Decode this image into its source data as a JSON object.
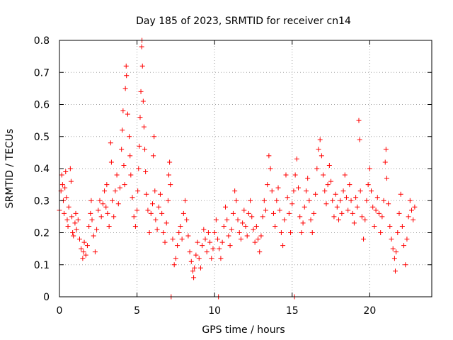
{
  "chart_data": {
    "type": "scatter",
    "title": "Day 185 of 2023, SRMTID for receiver cn14",
    "xlabel": "GPS time / hours",
    "ylabel": "SRMTID / TECUs",
    "xlim": [
      0,
      24
    ],
    "ylim": [
      0,
      0.8
    ],
    "xticks": [
      0,
      5,
      10,
      15,
      20
    ],
    "xtick_labels": [
      "0",
      "5",
      "10",
      "15",
      "20"
    ],
    "yticks": [
      0,
      0.1,
      0.2,
      0.3,
      0.4,
      0.5,
      0.6,
      0.7,
      0.8
    ],
    "ytick_labels": [
      "0",
      "0.1",
      "0.2",
      "0.3",
      "0.4",
      "0.5",
      "0.6",
      "0.7",
      "0.8"
    ],
    "grid": true,
    "marker": "+",
    "color": "#ff0000",
    "series": [
      {
        "name": "cn14",
        "points": [
          [
            0.0,
            0.27
          ],
          [
            0.1,
            0.33
          ],
          [
            0.15,
            0.38
          ],
          [
            0.2,
            0.35
          ],
          [
            0.25,
            0.3
          ],
          [
            0.3,
            0.26
          ],
          [
            0.35,
            0.34
          ],
          [
            0.4,
            0.39
          ],
          [
            0.45,
            0.31
          ],
          [
            0.5,
            0.24
          ],
          [
            0.55,
            0.22
          ],
          [
            0.6,
            0.28
          ],
          [
            0.7,
            0.4
          ],
          [
            0.75,
            0.36
          ],
          [
            0.8,
            0.25
          ],
          [
            0.85,
            0.2
          ],
          [
            0.9,
            0.19
          ],
          [
            1.0,
            0.23
          ],
          [
            1.05,
            0.26
          ],
          [
            1.1,
            0.21
          ],
          [
            1.2,
            0.24
          ],
          [
            1.3,
            0.18
          ],
          [
            1.4,
            0.15
          ],
          [
            1.5,
            0.12
          ],
          [
            1.55,
            0.14
          ],
          [
            1.6,
            0.17
          ],
          [
            1.7,
            0.13
          ],
          [
            1.8,
            0.16
          ],
          [
            1.9,
            0.22
          ],
          [
            2.0,
            0.26
          ],
          [
            2.05,
            0.3
          ],
          [
            2.1,
            0.24
          ],
          [
            2.2,
            0.19
          ],
          [
            2.3,
            0.14
          ],
          [
            2.4,
            0.21
          ],
          [
            2.5,
            0.27
          ],
          [
            2.6,
            0.3
          ],
          [
            2.7,
            0.25
          ],
          [
            2.8,
            0.29
          ],
          [
            2.9,
            0.33
          ],
          [
            3.0,
            0.28
          ],
          [
            3.05,
            0.35
          ],
          [
            3.1,
            0.26
          ],
          [
            3.2,
            0.22
          ],
          [
            3.3,
            0.48
          ],
          [
            3.35,
            0.42
          ],
          [
            3.4,
            0.3
          ],
          [
            3.5,
            0.25
          ],
          [
            3.6,
            0.33
          ],
          [
            3.7,
            0.38
          ],
          [
            3.8,
            0.29
          ],
          [
            3.9,
            0.34
          ],
          [
            4.0,
            0.46
          ],
          [
            4.05,
            0.52
          ],
          [
            4.1,
            0.58
          ],
          [
            4.15,
            0.41
          ],
          [
            4.2,
            0.35
          ],
          [
            4.25,
            0.65
          ],
          [
            4.3,
            0.72
          ],
          [
            4.32,
            0.69
          ],
          [
            4.4,
            0.57
          ],
          [
            4.5,
            0.5
          ],
          [
            4.55,
            0.44
          ],
          [
            4.6,
            0.38
          ],
          [
            4.7,
            0.31
          ],
          [
            4.8,
            0.25
          ],
          [
            4.9,
            0.22
          ],
          [
            5.0,
            0.27
          ],
          [
            5.05,
            0.33
          ],
          [
            5.1,
            0.4
          ],
          [
            5.15,
            0.47
          ],
          [
            5.2,
            0.56
          ],
          [
            5.25,
            0.64
          ],
          [
            5.3,
            0.78
          ],
          [
            5.32,
            0.8
          ],
          [
            5.35,
            0.72
          ],
          [
            5.4,
            0.61
          ],
          [
            5.45,
            0.53
          ],
          [
            5.5,
            0.46
          ],
          [
            5.55,
            0.39
          ],
          [
            5.6,
            0.32
          ],
          [
            5.7,
            0.27
          ],
          [
            5.8,
            0.2
          ],
          [
            5.9,
            0.26
          ],
          [
            6.0,
            0.29
          ],
          [
            6.05,
            0.44
          ],
          [
            6.1,
            0.5
          ],
          [
            6.15,
            0.33
          ],
          [
            6.2,
            0.24
          ],
          [
            6.3,
            0.21
          ],
          [
            6.4,
            0.28
          ],
          [
            6.5,
            0.32
          ],
          [
            6.6,
            0.26
          ],
          [
            6.7,
            0.2
          ],
          [
            6.8,
            0.17
          ],
          [
            6.9,
            0.23
          ],
          [
            7.0,
            0.3
          ],
          [
            7.05,
            0.38
          ],
          [
            7.1,
            0.42
          ],
          [
            7.15,
            0.35
          ],
          [
            7.2,
            0.0
          ],
          [
            7.3,
            0.18
          ],
          [
            7.4,
            0.1
          ],
          [
            7.5,
            0.12
          ],
          [
            7.6,
            0.16
          ],
          [
            7.7,
            0.2
          ],
          [
            7.8,
            0.22
          ],
          [
            7.9,
            0.18
          ],
          [
            8.0,
            0.26
          ],
          [
            8.1,
            0.3
          ],
          [
            8.2,
            0.24
          ],
          [
            8.3,
            0.19
          ],
          [
            8.4,
            0.14
          ],
          [
            8.5,
            0.11
          ],
          [
            8.6,
            0.08
          ],
          [
            8.65,
            0.06
          ],
          [
            8.7,
            0.09
          ],
          [
            8.8,
            0.13
          ],
          [
            8.9,
            0.17
          ],
          [
            9.0,
            0.12
          ],
          [
            9.1,
            0.09
          ],
          [
            9.2,
            0.16
          ],
          [
            9.3,
            0.21
          ],
          [
            9.4,
            0.18
          ],
          [
            9.5,
            0.14
          ],
          [
            9.6,
            0.2
          ],
          [
            9.7,
            0.17
          ],
          [
            9.8,
            0.12
          ],
          [
            9.9,
            0.15
          ],
          [
            10.0,
            0.2
          ],
          [
            10.1,
            0.24
          ],
          [
            10.2,
            0.18
          ],
          [
            10.25,
            0.0
          ],
          [
            10.3,
            0.15
          ],
          [
            10.4,
            0.12
          ],
          [
            10.5,
            0.17
          ],
          [
            10.6,
            0.22
          ],
          [
            10.7,
            0.28
          ],
          [
            10.8,
            0.24
          ],
          [
            10.9,
            0.19
          ],
          [
            11.0,
            0.16
          ],
          [
            11.1,
            0.21
          ],
          [
            11.2,
            0.26
          ],
          [
            11.3,
            0.33
          ],
          [
            11.4,
            0.3
          ],
          [
            11.5,
            0.24
          ],
          [
            11.6,
            0.2
          ],
          [
            11.7,
            0.18
          ],
          [
            11.8,
            0.23
          ],
          [
            11.9,
            0.27
          ],
          [
            12.0,
            0.22
          ],
          [
            12.1,
            0.19
          ],
          [
            12.2,
            0.26
          ],
          [
            12.3,
            0.3
          ],
          [
            12.4,
            0.25
          ],
          [
            12.5,
            0.21
          ],
          [
            12.6,
            0.17
          ],
          [
            12.7,
            0.22
          ],
          [
            12.8,
            0.18
          ],
          [
            12.9,
            0.14
          ],
          [
            13.0,
            0.19
          ],
          [
            13.1,
            0.25
          ],
          [
            13.2,
            0.3
          ],
          [
            13.3,
            0.27
          ],
          [
            13.4,
            0.35
          ],
          [
            13.5,
            0.44
          ],
          [
            13.6,
            0.4
          ],
          [
            13.7,
            0.33
          ],
          [
            13.8,
            0.26
          ],
          [
            13.9,
            0.22
          ],
          [
            14.0,
            0.3
          ],
          [
            14.1,
            0.34
          ],
          [
            14.2,
            0.27
          ],
          [
            14.3,
            0.2
          ],
          [
            14.4,
            0.16
          ],
          [
            14.5,
            0.24
          ],
          [
            14.6,
            0.38
          ],
          [
            14.7,
            0.31
          ],
          [
            14.8,
            0.26
          ],
          [
            14.9,
            0.2
          ],
          [
            15.0,
            0.29
          ],
          [
            15.1,
            0.33
          ],
          [
            15.15,
            0.0
          ],
          [
            15.2,
            0.38
          ],
          [
            15.3,
            0.43
          ],
          [
            15.4,
            0.34
          ],
          [
            15.5,
            0.25
          ],
          [
            15.6,
            0.2
          ],
          [
            15.7,
            0.23
          ],
          [
            15.8,
            0.28
          ],
          [
            15.9,
            0.33
          ],
          [
            16.0,
            0.37
          ],
          [
            16.1,
            0.3
          ],
          [
            16.2,
            0.24
          ],
          [
            16.3,
            0.2
          ],
          [
            16.4,
            0.26
          ],
          [
            16.5,
            0.32
          ],
          [
            16.6,
            0.4
          ],
          [
            16.7,
            0.46
          ],
          [
            16.8,
            0.49
          ],
          [
            16.9,
            0.44
          ],
          [
            17.0,
            0.38
          ],
          [
            17.1,
            0.33
          ],
          [
            17.2,
            0.29
          ],
          [
            17.3,
            0.35
          ],
          [
            17.4,
            0.41
          ],
          [
            17.5,
            0.36
          ],
          [
            17.6,
            0.3
          ],
          [
            17.7,
            0.25
          ],
          [
            17.8,
            0.32
          ],
          [
            17.9,
            0.28
          ],
          [
            18.0,
            0.24
          ],
          [
            18.1,
            0.3
          ],
          [
            18.2,
            0.26
          ],
          [
            18.3,
            0.33
          ],
          [
            18.4,
            0.38
          ],
          [
            18.5,
            0.31
          ],
          [
            18.6,
            0.27
          ],
          [
            18.7,
            0.35
          ],
          [
            18.8,
            0.3
          ],
          [
            18.9,
            0.26
          ],
          [
            19.0,
            0.23
          ],
          [
            19.1,
            0.31
          ],
          [
            19.2,
            0.28
          ],
          [
            19.3,
            0.55
          ],
          [
            19.35,
            0.49
          ],
          [
            19.4,
            0.33
          ],
          [
            19.5,
            0.25
          ],
          [
            19.6,
            0.18
          ],
          [
            19.7,
            0.24
          ],
          [
            19.8,
            0.3
          ],
          [
            19.9,
            0.35
          ],
          [
            20.0,
            0.4
          ],
          [
            20.1,
            0.33
          ],
          [
            20.2,
            0.28
          ],
          [
            20.3,
            0.22
          ],
          [
            20.4,
            0.27
          ],
          [
            20.5,
            0.31
          ],
          [
            20.6,
            0.26
          ],
          [
            20.7,
            0.2
          ],
          [
            20.8,
            0.25
          ],
          [
            20.9,
            0.3
          ],
          [
            21.0,
            0.42
          ],
          [
            21.05,
            0.46
          ],
          [
            21.1,
            0.37
          ],
          [
            21.2,
            0.29
          ],
          [
            21.3,
            0.22
          ],
          [
            21.4,
            0.18
          ],
          [
            21.5,
            0.15
          ],
          [
            21.6,
            0.12
          ],
          [
            21.65,
            0.08
          ],
          [
            21.7,
            0.14
          ],
          [
            21.8,
            0.2
          ],
          [
            21.9,
            0.26
          ],
          [
            22.0,
            0.32
          ],
          [
            22.1,
            0.22
          ],
          [
            22.2,
            0.16
          ],
          [
            22.3,
            0.1
          ],
          [
            22.4,
            0.18
          ],
          [
            22.5,
            0.25
          ],
          [
            22.6,
            0.3
          ],
          [
            22.7,
            0.27
          ],
          [
            22.8,
            0.24
          ],
          [
            22.9,
            0.28
          ]
        ]
      }
    ]
  }
}
